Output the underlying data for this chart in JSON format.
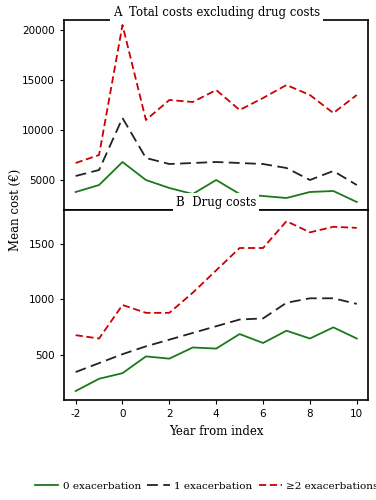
{
  "x": [
    -2,
    -1,
    0,
    1,
    2,
    3,
    4,
    5,
    6,
    7,
    8,
    9,
    10
  ],
  "panel_A": {
    "title": "A  Total costs excluding drug costs",
    "green": [
      3800,
      4500,
      6800,
      5000,
      4200,
      3600,
      5000,
      3600,
      3400,
      3200,
      3800,
      3900,
      2800
    ],
    "black": [
      5400,
      6000,
      11200,
      7200,
      6600,
      6700,
      6800,
      6700,
      6600,
      6200,
      5000,
      5900,
      4500
    ],
    "red": [
      6700,
      7500,
      20500,
      11000,
      13000,
      12800,
      14000,
      12000,
      13200,
      14500,
      13500,
      11700,
      13500
    ],
    "ylim": [
      2000,
      21000
    ],
    "yticks": [
      5000,
      10000,
      15000,
      20000
    ]
  },
  "panel_B": {
    "title": "B  Drug costs",
    "green": [
      180,
      290,
      340,
      490,
      470,
      570,
      560,
      690,
      610,
      720,
      650,
      750,
      650
    ],
    "black": [
      350,
      430,
      510,
      580,
      640,
      700,
      760,
      820,
      830,
      970,
      1010,
      1010,
      960
    ],
    "red": [
      680,
      650,
      950,
      880,
      880,
      1060,
      1260,
      1460,
      1460,
      1700,
      1600,
      1650,
      1640
    ],
    "ylim": [
      100,
      1800
    ],
    "yticks": [
      500,
      1000,
      1500
    ]
  },
  "xticks": [
    -2,
    0,
    2,
    4,
    6,
    8,
    10
  ],
  "xlabel": "Year from index",
  "ylabel": "Mean cost (€)",
  "legend": {
    "green_label": "0 exacerbation",
    "black_label": "1 exacerbation",
    "red_label": "≥2 exacerbations"
  },
  "green_color": "#1a7a1a",
  "black_color": "#222222",
  "red_color": "#cc0000",
  "bg_color": "#ffffff",
  "title_fontsize": 8.5,
  "tick_fontsize": 7.5,
  "label_fontsize": 8.5,
  "legend_fontsize": 7.5
}
